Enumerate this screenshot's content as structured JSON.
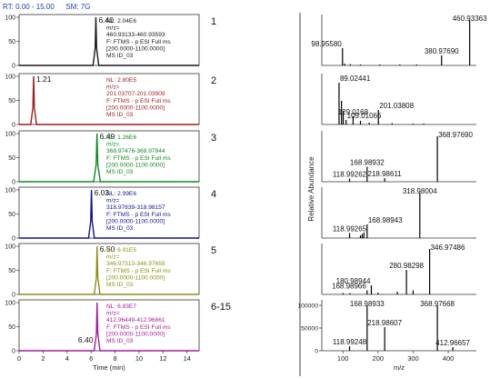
{
  "header": {
    "rt_label": "RT:",
    "rt_range": "0.00 - 15.00",
    "sm_label": "SM:",
    "sm_value": "7G"
  },
  "colors": {
    "header_blue": "#1a3fb0",
    "panel_border": "#333333",
    "divider": "#444444",
    "mass_spec_line": "#000000"
  },
  "chart_data": [
    {
      "type": "line",
      "chart": "chromatograms",
      "xlabel": "Time (min)",
      "xlim": [
        0,
        15
      ],
      "x_ticks": [
        0,
        2,
        4,
        6,
        8,
        10,
        12,
        14
      ],
      "ylabel": "",
      "panels": [
        {
          "label": "1",
          "color": "#1a1a1a",
          "peak_rt": 6.4,
          "peak_label": "6.40",
          "peak_width": 0.06,
          "y_ticks": [
            0,
            50,
            100
          ],
          "info": [
            "NL: 2.04E6",
            "m/z=",
            "460.93133-460.93593",
            "F: FTMS - p ESI Full ms",
            "[200.0000-1100.0000]",
            "MS ID_03"
          ]
        },
        {
          "label": "2",
          "color": "#9e1c1c",
          "peak_rt": 1.21,
          "peak_label": "1.21",
          "peak_width": 0.06,
          "y_ticks": [
            0,
            50,
            100
          ],
          "info": [
            "NL: 2.80E5",
            "m/z=",
            "201.03707-201.03909",
            "F: FTMS - p ESI Full ms",
            "[200.0000-1100.0000]",
            "MS ID_03"
          ]
        },
        {
          "label": "3",
          "color": "#0e8a23",
          "peak_rt": 6.49,
          "peak_label": "6.49",
          "peak_width": 0.07,
          "y_ticks": [
            0,
            50,
            100
          ],
          "info": [
            "NL: 1.26E6",
            "m/z=",
            "368.97476-368.97844",
            "F: FTMS - p ESI Full ms",
            "[200.0000-1100.0000]",
            "MS ID_03"
          ]
        },
        {
          "label": "4",
          "color": "#14148c",
          "peak_rt": 6.03,
          "peak_label": "6.03",
          "peak_width": 0.06,
          "y_ticks": [
            0,
            50,
            100
          ],
          "info": [
            "NL: 2.99E6",
            "m/z=",
            "318.97839-318.98157",
            "F: FTMS - p ESI Full ms",
            "[200.0000-1100.0000]",
            "MS ID_03"
          ]
        },
        {
          "label": "5",
          "color": "#8f8f14",
          "peak_rt": 6.5,
          "peak_label": "6.50",
          "peak_width": 0.06,
          "y_ticks": [
            0,
            50,
            100
          ],
          "info": [
            "NL: 6.91E5",
            "m/z=",
            "346.97313-346.97659",
            "F: FTMS - p ESI Full ms",
            "[200.0000-1100.0000]",
            "MS ID_03"
          ]
        },
        {
          "label": "6-15",
          "color": "#a21e9c",
          "peak_rt": 6.5,
          "peak_label": "",
          "peak_width": 0.06,
          "minor_rt": 6.4,
          "minor_label": "6.40",
          "minor_height": 15,
          "y_ticks": [
            0,
            50,
            100
          ],
          "info": [
            "NL: 6.83E7",
            "m/z=",
            "412.96449-412.96861",
            "F: FTMS - p ESI Full ms",
            "[200.0000-1100.0000]",
            "MS ID_03"
          ]
        }
      ]
    },
    {
      "type": "bar",
      "chart": "mass spectra",
      "xlabel": "m/z",
      "ylabel": "Relative Abundance",
      "xlim": [
        40,
        480
      ],
      "x_ticks": [
        100,
        200,
        300,
        400
      ],
      "panels": [
        {
          "sticks": [
            [
              98.9558,
              38
            ],
            [
              105,
              4
            ],
            [
              121,
              3
            ],
            [
              150,
              2
            ],
            [
              205,
              2
            ],
            [
              262,
              2
            ],
            [
              310,
              2
            ],
            [
              380.9769,
              22
            ],
            [
              460.93363,
              100
            ]
          ],
          "labels": [
            [
              "98.95580",
              98.9558,
              38,
              "right"
            ],
            [
              "380.97690",
              380.9769,
              22,
              "center"
            ],
            [
              "460.93363",
              460.93363,
              100,
              "center"
            ]
          ],
          "y_ticks": [],
          "y_tick_labels": []
        },
        {
          "sticks": [
            [
              89.02441,
              92
            ],
            [
              96,
              52
            ],
            [
              101,
              30
            ],
            [
              109.01066,
              10
            ],
            [
              129.0168,
              18
            ],
            [
              150,
              8
            ],
            [
              175,
              4
            ],
            [
              201.03808,
              32
            ],
            [
              240,
              3
            ],
            [
              300,
              2
            ],
            [
              330,
              2
            ]
          ],
          "labels": [
            [
              "89.02441",
              89.02441,
              92,
              "left"
            ],
            [
              "129.0168",
              129.0168,
              18,
              "center"
            ],
            [
              "109.01066",
              109.01066,
              10,
              "left"
            ],
            [
              "201.03808",
              201.03808,
              32,
              "left"
            ]
          ],
          "y_ticks": [],
          "y_tick_labels": []
        },
        {
          "sticks": [
            [
              118.99262,
              7
            ],
            [
              168.98932,
              33
            ],
            [
              218.98611,
              8
            ],
            [
              368.9769,
              100
            ]
          ],
          "labels": [
            [
              "168.98932",
              168.98932,
              33,
              "center"
            ],
            [
              "118.99262",
              118.99262,
              7,
              "center"
            ],
            [
              "218.98611",
              218.98611,
              8,
              "center"
            ],
            [
              "368.97690",
              368.9769,
              100,
              "left"
            ]
          ],
          "y_ticks": [],
          "y_tick_labels": []
        },
        {
          "sticks": [
            [
              118.99265,
              11
            ],
            [
              150,
              6
            ],
            [
              155,
              9
            ],
            [
              160,
              12
            ],
            [
              168.98943,
              30
            ],
            [
              318.98004,
              100
            ]
          ],
          "labels": [
            [
              "118.99265",
              118.99265,
              11,
              "center"
            ],
            [
              "168.98943",
              168.98943,
              30,
              "left"
            ],
            [
              "318.98004",
              318.98004,
              100,
              "center"
            ]
          ],
          "y_ticks": [],
          "y_tick_labels": []
        },
        {
          "sticks": [
            [
              100,
              3
            ],
            [
              120,
              3
            ],
            [
              168.98966,
              9
            ],
            [
              180.98944,
              20
            ],
            [
              200,
              4
            ],
            [
              255,
              6
            ],
            [
              280.98298,
              54
            ],
            [
              300,
              9
            ],
            [
              346.97486,
              100
            ]
          ],
          "labels": [
            [
              "346.97486",
              346.97486,
              100,
              "left"
            ],
            [
              "280.98298",
              280.98298,
              54,
              "center"
            ],
            [
              "180.98944",
              180.98944,
              20,
              "right"
            ],
            [
              "168.98966",
              168.98966,
              9,
              "right"
            ]
          ],
          "y_ticks": [],
          "y_tick_labels": []
        },
        {
          "sticks": [
            [
              118.99248,
              10
            ],
            [
              168.98933,
              100
            ],
            [
              218.98607,
              52
            ],
            [
              368.97668,
              100
            ],
            [
              412.96657,
              8
            ]
          ],
          "labels": [
            [
              "168.98933",
              168.98933,
              100,
              "center"
            ],
            [
              "368.97668",
              368.97668,
              100,
              "center"
            ],
            [
              "218.98607",
              218.98607,
              52,
              "center"
            ],
            [
              "118.99248",
              118.99248,
              10,
              "center"
            ],
            [
              "412.96657",
              412.96657,
              8,
              "center"
            ]
          ],
          "y_ticks": [
            0,
            50000,
            100000
          ],
          "y_tick_labels": [
            "0",
            "50000",
            "100000"
          ]
        }
      ]
    }
  ]
}
